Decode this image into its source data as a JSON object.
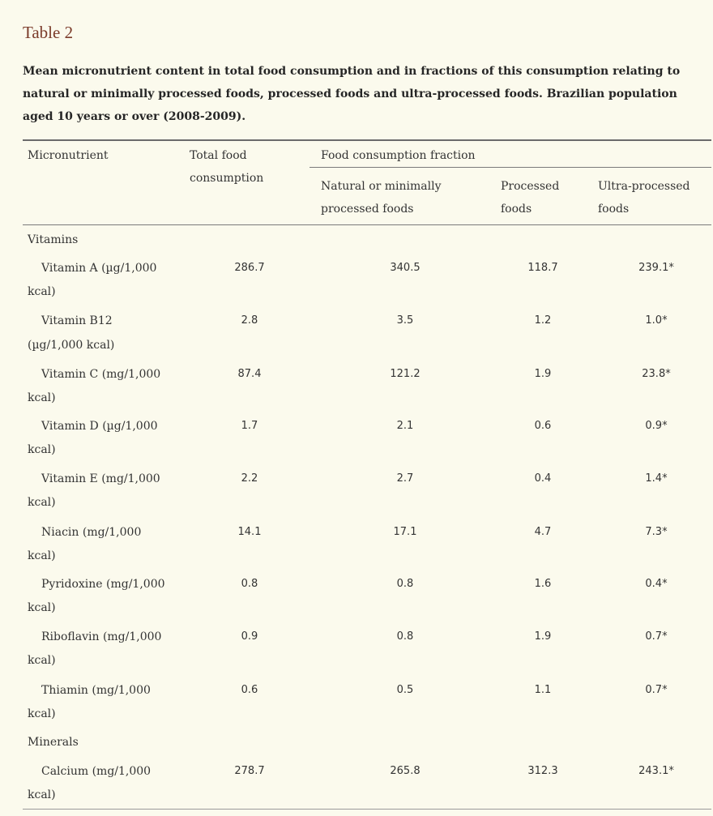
{
  "title": "Table 2",
  "caption": "Mean micronutrient content in total food consumption and in fractions of this consumption relating to natural or minimally processed foods, processed foods and ultra-processed foods. Brazilian population aged 10 years or over (2008-2009).",
  "headers": {
    "micronutrient": "Micronutrient",
    "total_line1": "Total food",
    "total_line2": "consumption",
    "group": "Food consumption fraction",
    "natural_line1": "Natural or minimally",
    "natural_line2": "processed foods",
    "processed_line1": "Processed",
    "processed_line2": "foods",
    "ultra_line1": "Ultra-processed",
    "ultra_line2": "foods"
  },
  "sections": {
    "vitamins": "Vitamins",
    "minerals": "Minerals"
  },
  "rows": [
    {
      "name_line1": "Vitamin A (µg/1,000",
      "name_line2": "kcal)",
      "total": "286.7",
      "natural": "340.5",
      "processed": "118.7",
      "ultra": "239.1*"
    },
    {
      "name_line1": "Vitamin B12",
      "name_line2": "(µg/1,000 kcal)",
      "total": "2.8",
      "natural": "3.5",
      "processed": "1.2",
      "ultra": "1.0*"
    },
    {
      "name_line1": "Vitamin C (mg/1,000",
      "name_line2": "kcal)",
      "total": "87.4",
      "natural": "121.2",
      "processed": "1.9",
      "ultra": "23.8*"
    },
    {
      "name_line1": "Vitamin D (µg/1,000",
      "name_line2": "kcal)",
      "total": "1.7",
      "natural": "2.1",
      "processed": "0.6",
      "ultra": "0.9*"
    },
    {
      "name_line1": "Vitamin E (mg/1,000",
      "name_line2": "kcal)",
      "total": "2.2",
      "natural": "2.7",
      "processed": "0.4",
      "ultra": "1.4*"
    },
    {
      "name_line1": "Niacin (mg/1,000",
      "name_line2": "kcal)",
      "total": "14.1",
      "natural": "17.1",
      "processed": "4.7",
      "ultra": "7.3*"
    },
    {
      "name_line1": "Pyridoxine (mg/1,000",
      "name_line2": "kcal)",
      "total": "0.8",
      "natural": "0.8",
      "processed": "1.6",
      "ultra": "0.4*"
    },
    {
      "name_line1": "Riboflavin (mg/1,000",
      "name_line2": "kcal)",
      "total": "0.9",
      "natural": "0.8",
      "processed": "1.9",
      "ultra": "0.7*"
    },
    {
      "name_line1": "Thiamin (mg/1,000",
      "name_line2": "kcal)",
      "total": "0.6",
      "natural": "0.5",
      "processed": "1.1",
      "ultra": "0.7*"
    },
    {
      "name_line1": "Calcium (mg/1,000",
      "name_line2": "kcal)",
      "total": "278.7",
      "natural": "265.8",
      "processed": "312.3",
      "ultra": "243.1*"
    }
  ]
}
